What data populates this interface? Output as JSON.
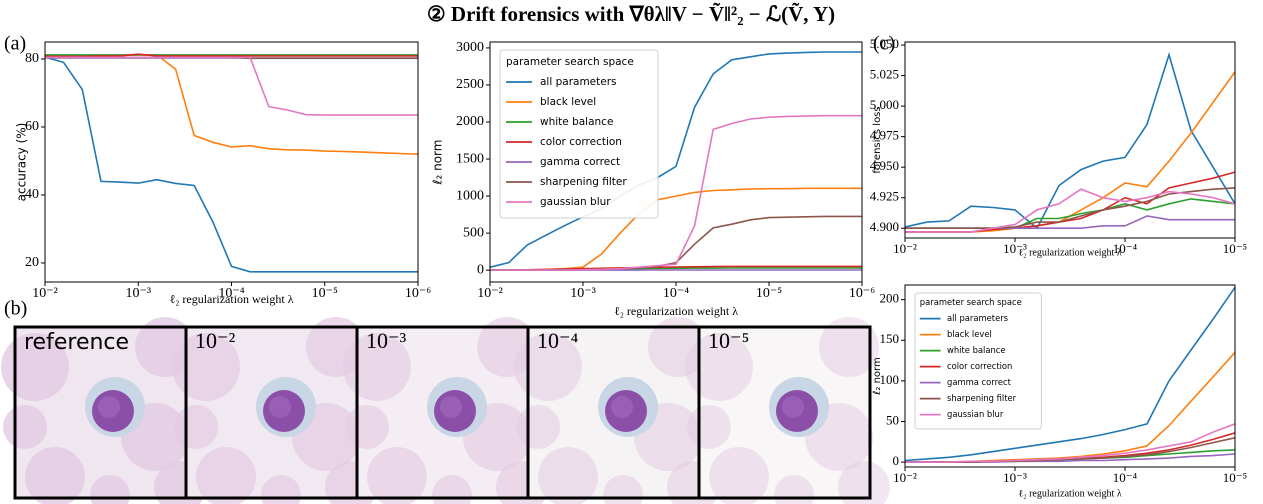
{
  "title": "② Drift forensics with ∇θλ‖V − Ṽ‖²₂ − ℒ(Ṽ, Y)",
  "panel_b": {
    "label": "(b)",
    "captions": [
      "reference",
      "10⁻²",
      "10⁻³",
      "10⁻⁴",
      "10⁻⁵"
    ]
  },
  "chart_data": [
    {
      "type": "line",
      "panel_label": "(a)",
      "xlabel": "ℓ₂ regularization weight λ",
      "ylabel": "accuracy (%)",
      "xscale": "log",
      "xlim": [
        0.01,
        1e-06
      ],
      "ylim": [
        14.4,
        85
      ],
      "xticks": [
        {
          "value": 0.01,
          "label": "10⁻²"
        },
        {
          "value": 0.001,
          "label": "10⁻³"
        },
        {
          "value": 0.0001,
          "label": "10⁻⁴"
        },
        {
          "value": 1e-05,
          "label": "10⁻⁵"
        },
        {
          "value": 1e-06,
          "label": "10⁻⁶"
        }
      ],
      "yticks": [
        20,
        40,
        60,
        80
      ],
      "x": [
        0.01,
        0.00631,
        0.00398,
        0.00251,
        0.00158,
        0.001,
        0.000631,
        0.000398,
        0.000251,
        0.000158,
        0.0001,
        6.31e-05,
        3.98e-05,
        2.51e-05,
        1.58e-05,
        1e-05,
        6.31e-06,
        3.98e-06,
        2.51e-06,
        1.58e-06,
        1e-06
      ],
      "series": [
        {
          "color": "#1f77b4",
          "values": [
            80.6,
            79,
            71,
            44,
            43.8,
            43.5,
            44.5,
            43.4,
            42.8,
            32,
            19,
            17.4,
            17.4,
            17.4,
            17.4,
            17.4,
            17.4,
            17.4,
            17.4,
            17.4,
            17.4
          ]
        },
        {
          "color": "#ff7f0e",
          "values": [
            80.8,
            80.8,
            80.9,
            81,
            81.1,
            81.2,
            81.2,
            77,
            57.5,
            55.5,
            54.1,
            54.5,
            53.6,
            53.3,
            53.2,
            52.9,
            52.8,
            52.6,
            52.4,
            52.2,
            52
          ]
        },
        {
          "color": "#2ca02c",
          "values": [
            81.2,
            81.2,
            81.2,
            81.2,
            81.2,
            81.2,
            81.2,
            81.2,
            81.2,
            81.2,
            81.2,
            81.2,
            81.2,
            81.2,
            81.2,
            81.2,
            81.2,
            81.2,
            81.2,
            81.2,
            81.2
          ]
        },
        {
          "color": "#d62728",
          "values": [
            80.8,
            80.8,
            80.8,
            80.9,
            80.9,
            81.4,
            80.9,
            80.9,
            80.9,
            80.9,
            80.9,
            80.9,
            80.9,
            80.9,
            80.9,
            80.9,
            80.9,
            80.9,
            80.9,
            80.9,
            80.9
          ]
        },
        {
          "color": "#9467bd",
          "values": [
            80.3,
            80.3,
            80.3,
            80.3,
            80.3,
            80.3,
            80.3,
            80.3,
            80.3,
            80.3,
            80.3,
            80.3,
            80.3,
            80.3,
            80.3,
            80.3,
            80.3,
            80.3,
            80.3,
            80.3,
            80.3
          ]
        },
        {
          "color": "#8c564b",
          "values": [
            80.5,
            80.5,
            80.5,
            80.5,
            80.5,
            80.5,
            80.5,
            80.5,
            80.5,
            80.5,
            80.5,
            80.2,
            80.2,
            80.2,
            80.2,
            80.2,
            80.2,
            80.2,
            80.2,
            80.2,
            80.2
          ]
        },
        {
          "color": "#e377c2",
          "values": [
            80.5,
            80.5,
            80.5,
            80.5,
            80.5,
            80.5,
            80.5,
            80.5,
            80.5,
            80.5,
            80.5,
            80.5,
            66,
            65,
            63.6,
            63.5,
            63.5,
            63.5,
            63.5,
            63.5,
            63.5
          ]
        }
      ]
    },
    {
      "type": "line",
      "xlabel": "ℓ₂ regularization weight λ",
      "ylabel": "ℓ₂ norm",
      "xscale": "log",
      "xlim": [
        0.01,
        1e-06
      ],
      "ylim": [
        -160,
        3080
      ],
      "xticks": [
        {
          "value": 0.01,
          "label": "10⁻²"
        },
        {
          "value": 0.001,
          "label": "10⁻³"
        },
        {
          "value": 0.0001,
          "label": "10⁻⁴"
        },
        {
          "value": 1e-05,
          "label": "10⁻⁵"
        },
        {
          "value": 1e-06,
          "label": "10⁻⁶"
        }
      ],
      "yticks": [
        0,
        500,
        1000,
        1500,
        2000,
        2500,
        3000
      ],
      "legend": "upper left",
      "legend_title": "parameter search space",
      "x": [
        0.01,
        0.00631,
        0.00398,
        0.00251,
        0.00158,
        0.001,
        0.000631,
        0.000398,
        0.000251,
        0.000158,
        0.0001,
        6.31e-05,
        3.98e-05,
        2.51e-05,
        1.58e-05,
        1e-05,
        6.31e-06,
        3.98e-06,
        2.51e-06,
        1.58e-06,
        1e-06
      ],
      "series": [
        {
          "name": "all parameters",
          "color": "#1f77b4",
          "values": [
            40,
            100,
            340,
            470,
            600,
            720,
            830,
            1000,
            1150,
            1250,
            1400,
            2200,
            2650,
            2840,
            2880,
            2920,
            2930,
            2940,
            2945,
            2945,
            2945
          ]
        },
        {
          "name": "black level",
          "color": "#ff7f0e",
          "values": [
            0,
            0,
            5,
            10,
            20,
            40,
            220,
            500,
            760,
            950,
            1000,
            1050,
            1075,
            1085,
            1095,
            1100,
            1100,
            1105,
            1105,
            1105,
            1105
          ]
        },
        {
          "name": "white balance",
          "color": "#2ca02c",
          "values": [
            0,
            1,
            3,
            5,
            8,
            12,
            15,
            18,
            20,
            22,
            25,
            27,
            28,
            29,
            30,
            30,
            30,
            30,
            30,
            30,
            30
          ]
        },
        {
          "name": "color correction",
          "color": "#d62728",
          "values": [
            0,
            2,
            5,
            10,
            15,
            20,
            25,
            30,
            35,
            40,
            42,
            45,
            48,
            50,
            50,
            50,
            50,
            50,
            50,
            50,
            50
          ]
        },
        {
          "name": "gamma correct",
          "color": "#9467bd",
          "values": [
            0,
            0,
            0,
            0,
            0,
            1,
            1,
            1,
            2,
            2,
            2,
            2,
            2,
            2,
            2,
            2,
            2,
            2,
            2,
            2,
            2
          ]
        },
        {
          "name": "sharpening filter",
          "color": "#8c564b",
          "values": [
            0,
            0,
            0,
            0,
            2,
            5,
            10,
            20,
            30,
            50,
            100,
            350,
            570,
            620,
            680,
            710,
            715,
            720,
            725,
            725,
            725
          ]
        },
        {
          "name": "gaussian blur",
          "color": "#e377c2",
          "values": [
            0,
            0,
            0,
            0,
            2,
            5,
            10,
            20,
            40,
            60,
            80,
            600,
            1900,
            1980,
            2040,
            2065,
            2075,
            2080,
            2085,
            2085,
            2085
          ]
        }
      ]
    },
    {
      "type": "line",
      "panel_label": "(c)",
      "xlabel": "ℓ₂ regularization weight λ",
      "ylabel": "forensics loss",
      "xscale": "log",
      "xlim": [
        0.01,
        1e-05
      ],
      "ylim": [
        4.892,
        5.0525
      ],
      "xticks": [
        {
          "value": 0.01,
          "label": "10⁻²"
        },
        {
          "value": 0.001,
          "label": "10⁻³"
        },
        {
          "value": 0.0001,
          "label": "10⁻⁴"
        },
        {
          "value": 1e-05,
          "label": "10⁻⁵"
        }
      ],
      "yticks": [
        {
          "value": 4.9,
          "label": "4.900"
        },
        {
          "value": 4.925,
          "label": "4.925"
        },
        {
          "value": 4.95,
          "label": "4.950"
        },
        {
          "value": 4.975,
          "label": "4.975"
        },
        {
          "value": 5,
          "label": "5.000"
        },
        {
          "value": 5.025,
          "label": "5.025"
        },
        {
          "value": 5.05,
          "label": "5.050"
        }
      ],
      "x": [
        0.01,
        0.00631,
        0.00398,
        0.00251,
        0.00158,
        0.001,
        0.000631,
        0.000398,
        0.000251,
        0.000158,
        0.0001,
        6.31e-05,
        3.98e-05,
        2.51e-05,
        1.58e-05,
        1e-05
      ],
      "series": [
        {
          "color": "#1f77b4",
          "values": [
            4.901,
            4.905,
            4.906,
            4.918,
            4.917,
            4.915,
            4.9,
            4.935,
            4.948,
            4.955,
            4.958,
            4.985,
            5.042,
            4.98,
            4.95,
            4.92
          ]
        },
        {
          "color": "#ff7f0e",
          "values": [
            4.897,
            4.897,
            4.897,
            4.897,
            4.898,
            4.9,
            4.902,
            4.905,
            4.915,
            4.925,
            4.937,
            4.934,
            4.955,
            4.978,
            5.003,
            5.028
          ]
        },
        {
          "color": "#2ca02c",
          "values": [
            4.9,
            4.9,
            4.9,
            4.9,
            4.9,
            4.9,
            4.908,
            4.908,
            4.912,
            4.915,
            4.92,
            4.915,
            4.92,
            4.924,
            4.922,
            4.92
          ]
        },
        {
          "color": "#d62728",
          "values": [
            4.897,
            4.897,
            4.897,
            4.897,
            4.899,
            4.9,
            4.902,
            4.905,
            4.908,
            4.915,
            4.925,
            4.92,
            4.933,
            4.937,
            4.941,
            4.946
          ]
        },
        {
          "color": "#9467bd",
          "values": [
            4.9,
            4.9,
            4.9,
            4.9,
            4.9,
            4.9,
            4.9,
            4.9,
            4.9,
            4.902,
            4.902,
            4.91,
            4.907,
            4.907,
            4.907,
            4.907
          ]
        },
        {
          "color": "#8c564b",
          "values": [
            4.9,
            4.9,
            4.9,
            4.9,
            4.9,
            4.901,
            4.905,
            4.905,
            4.91,
            4.915,
            4.918,
            4.922,
            4.928,
            4.93,
            4.932,
            4.933
          ]
        },
        {
          "color": "#e377c2",
          "values": [
            4.897,
            4.897,
            4.897,
            4.897,
            4.9,
            4.903,
            4.915,
            4.92,
            4.932,
            4.925,
            4.922,
            4.925,
            4.93,
            4.928,
            4.925,
            4.92
          ]
        }
      ]
    },
    {
      "type": "line",
      "xlabel": "ℓ₂ regularization weight λ",
      "ylabel": "ℓ₂ norm",
      "xscale": "log",
      "xlim": [
        0.01,
        1e-05
      ],
      "ylim": [
        -6,
        218
      ],
      "xticks": [
        {
          "value": 0.01,
          "label": "10⁻²"
        },
        {
          "value": 0.001,
          "label": "10⁻³"
        },
        {
          "value": 0.0001,
          "label": "10⁻⁴"
        },
        {
          "value": 1e-05,
          "label": "10⁻⁵"
        }
      ],
      "yticks": [
        0,
        50,
        100,
        150,
        200
      ],
      "legend": "upper left",
      "legend_title": "parameter search space",
      "x": [
        0.01,
        0.00631,
        0.00398,
        0.00251,
        0.00158,
        0.001,
        0.000631,
        0.000398,
        0.000251,
        0.000158,
        0.0001,
        6.31e-05,
        3.98e-05,
        2.51e-05,
        1.58e-05,
        1e-05
      ],
      "series": [
        {
          "name": "all parameters",
          "color": "#1f77b4",
          "values": [
            2,
            4,
            6,
            9,
            13,
            17,
            21,
            25,
            29,
            34,
            40,
            47,
            100,
            138,
            176,
            215
          ]
        },
        {
          "name": "black level",
          "color": "#ff7f0e",
          "values": [
            0,
            0,
            0,
            1,
            2,
            3,
            4,
            5,
            7,
            10,
            14,
            20,
            45,
            75,
            105,
            135
          ]
        },
        {
          "name": "white balance",
          "color": "#2ca02c",
          "values": [
            0,
            0,
            0,
            0,
            1,
            1,
            2,
            3,
            4,
            5,
            6,
            8,
            10,
            12,
            14,
            15
          ]
        },
        {
          "name": "color correction",
          "color": "#d62728",
          "values": [
            0,
            0,
            0,
            0,
            1,
            2,
            3,
            4,
            5,
            6,
            8,
            11,
            15,
            21,
            28,
            36
          ]
        },
        {
          "name": "gamma correct",
          "color": "#9467bd",
          "values": [
            0,
            0,
            0,
            0,
            0,
            1,
            1,
            1,
            2,
            2,
            3,
            4,
            5,
            7,
            8,
            10
          ]
        },
        {
          "name": "sharpening filter",
          "color": "#8c564b",
          "values": [
            0,
            0,
            0,
            0,
            1,
            1,
            2,
            3,
            4,
            5,
            7,
            9,
            13,
            18,
            24,
            30
          ]
        },
        {
          "name": "gaussian blur",
          "color": "#e377c2",
          "values": [
            0,
            0,
            0,
            1,
            1,
            2,
            3,
            4,
            6,
            8,
            11,
            15,
            20,
            25,
            37,
            47
          ]
        }
      ]
    }
  ]
}
